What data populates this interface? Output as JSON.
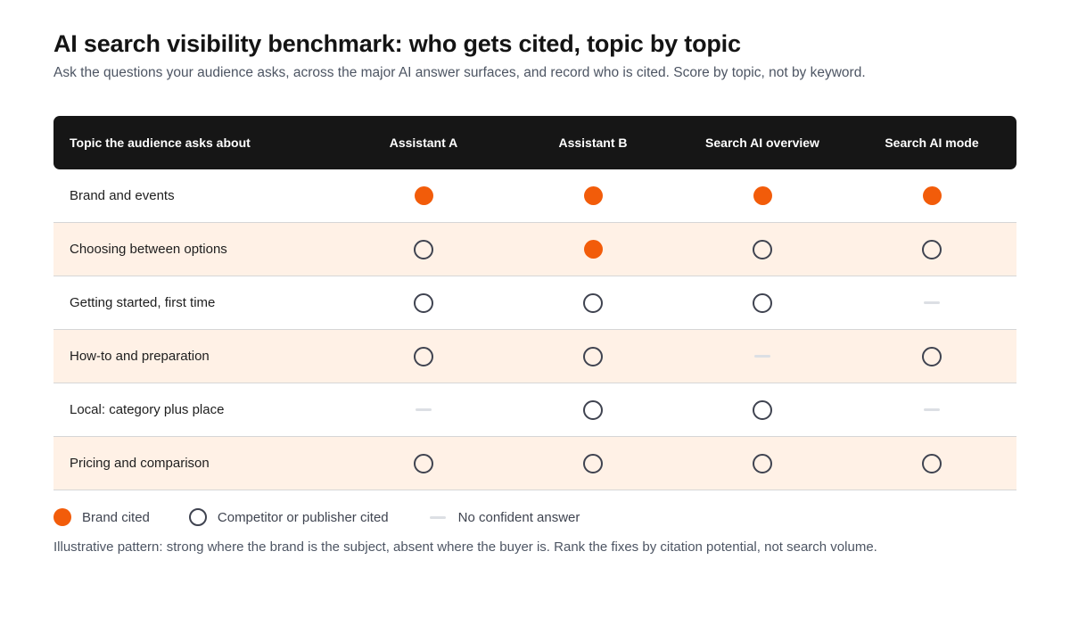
{
  "title": "AI search visibility benchmark: who gets cited, topic by topic",
  "subtitle": "Ask the questions your audience asks, across the major AI answer surfaces, and record who is cited. Score by topic, not by keyword.",
  "chart_data": {
    "type": "table",
    "row_header": "Topic the audience asks about",
    "columns": [
      "Assistant A",
      "Assistant B",
      "Search AI overview",
      "Search AI mode"
    ],
    "rows": [
      {
        "topic": "Brand and events",
        "values": [
          "brand",
          "brand",
          "brand",
          "brand"
        ]
      },
      {
        "topic": "Choosing between options",
        "values": [
          "competitor",
          "brand",
          "competitor",
          "competitor"
        ]
      },
      {
        "topic": "Getting started, first time",
        "values": [
          "competitor",
          "competitor",
          "competitor",
          "none"
        ]
      },
      {
        "topic": "How-to and preparation",
        "values": [
          "competitor",
          "competitor",
          "none",
          "competitor"
        ]
      },
      {
        "topic": "Local: category plus place",
        "values": [
          "none",
          "competitor",
          "competitor",
          "none"
        ]
      },
      {
        "topic": "Pricing and comparison",
        "values": [
          "competitor",
          "competitor",
          "competitor",
          "competitor"
        ]
      }
    ],
    "legend": [
      {
        "key": "brand",
        "label": "Brand cited"
      },
      {
        "key": "competitor",
        "label": "Competitor or publisher cited"
      },
      {
        "key": "none",
        "label": "No confident answer"
      }
    ]
  },
  "footnote": "Illustrative pattern: strong where the brand is the subject, absent where the buyer is. Rank the fixes by citation potential, not search volume.",
  "colors": {
    "brand": "#f25c0a",
    "competitor_outline": "#3f4350",
    "none": "#dcdfe4",
    "header_bg": "#161616",
    "alt_row_bg": "#fff1e6"
  }
}
